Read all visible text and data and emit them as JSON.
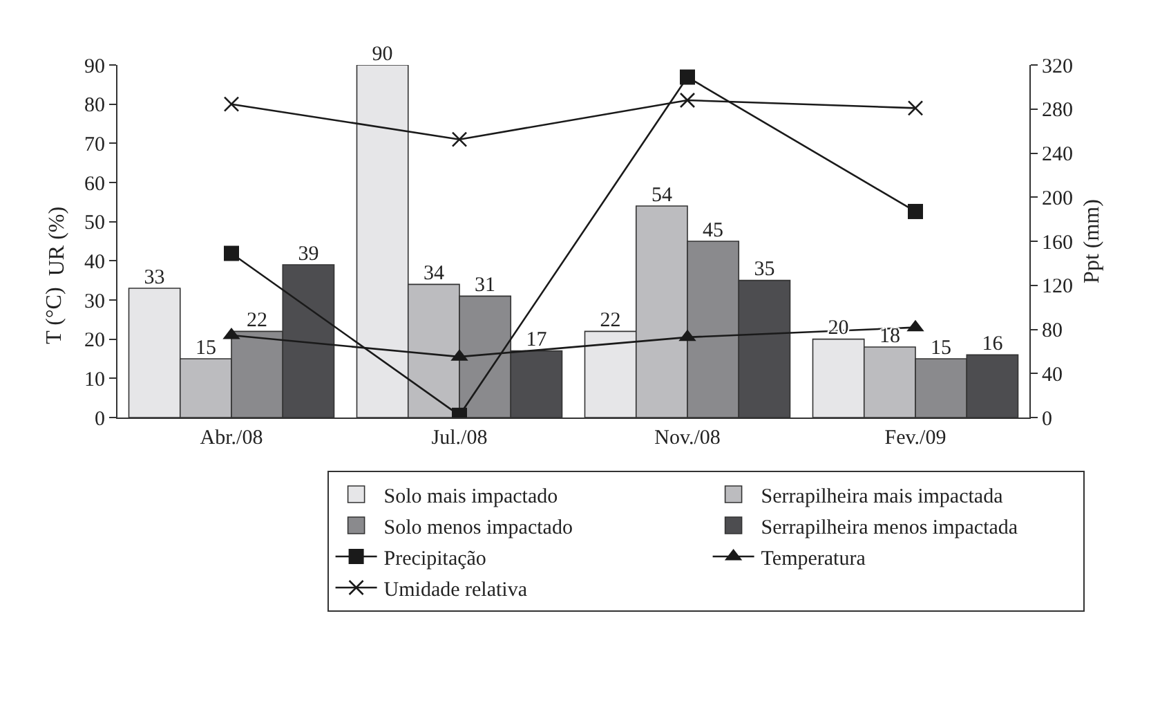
{
  "chart_data": {
    "type": "bar",
    "categories": [
      "Abr./08",
      "Jul./08",
      "Nov./08",
      "Fev./09"
    ],
    "ylabel": "UR (%)",
    "y2label": "Ppt (mm)",
    "annotations": [
      "T (°C)"
    ],
    "ylim": [
      0,
      90
    ],
    "yticks": [
      0,
      10,
      20,
      30,
      40,
      50,
      60,
      70,
      80,
      90
    ],
    "y2lim": [
      0,
      320
    ],
    "y2ticks": [
      0,
      40,
      80,
      120,
      160,
      200,
      240,
      280,
      320
    ],
    "grid": false,
    "legend": "bottom",
    "series": [
      {
        "name": "Solo mais impactado",
        "color": "#e6e6e8",
        "values": [
          33,
          90,
          22,
          20
        ],
        "value_labels": [
          "33",
          "90",
          "22",
          "20"
        ]
      },
      {
        "name": "Serrapilheira mais impactada",
        "color": "#bcbcbf",
        "values": [
          15,
          34,
          54,
          18
        ],
        "value_labels": [
          "15",
          "34",
          "54",
          "18"
        ]
      },
      {
        "name": "Solo menos impactado",
        "color": "#8a8a8d",
        "values": [
          22,
          31,
          45,
          15
        ],
        "value_labels": [
          "22",
          "31",
          "45",
          "15"
        ]
      },
      {
        "name": "Serrapilheira menos impactada",
        "color": "#4d4d50",
        "values": [
          39,
          17,
          35,
          16
        ],
        "value_labels": [
          "39",
          "17",
          "35",
          "16"
        ]
      },
      {
        "name": "Precipitação",
        "type": "line",
        "axis": "y2",
        "marker": "square",
        "color": "#1a1a1a",
        "values": [
          149,
          2,
          309,
          187
        ]
      },
      {
        "name": "Temperatura",
        "type": "line",
        "marker": "triangle",
        "color": "#1a1a1a",
        "values": [
          21,
          15.5,
          20.5,
          23
        ]
      },
      {
        "name": "Umidade relativa",
        "type": "line",
        "marker": "cross",
        "color": "#1a1a1a",
        "values": [
          80,
          71,
          81,
          79
        ]
      }
    ]
  }
}
